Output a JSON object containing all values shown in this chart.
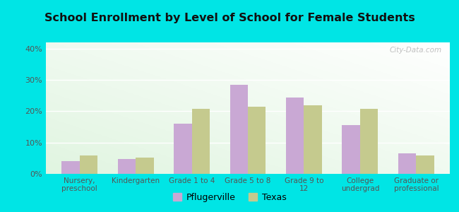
{
  "title": "School Enrollment by Level of School for Female Students",
  "categories": [
    "Nursery,\npreschool",
    "Kindergarten",
    "Grade 1 to 4",
    "Grade 5 to 8",
    "Grade 9 to\n12",
    "College\nundergrad",
    "Graduate or\nprofessional"
  ],
  "pflugerville": [
    4.0,
    4.8,
    16.0,
    28.5,
    24.5,
    15.5,
    6.5
  ],
  "texas": [
    5.8,
    5.3,
    20.8,
    21.5,
    21.8,
    20.8,
    5.8
  ],
  "pflugerville_color": "#c9a8d4",
  "texas_color": "#c5ca8e",
  "background_outer": "#00e5e5",
  "ylim": [
    0,
    42
  ],
  "yticks": [
    0,
    10,
    20,
    30,
    40
  ],
  "ytick_labels": [
    "0%",
    "10%",
    "20%",
    "30%",
    "40%"
  ],
  "bar_width": 0.32,
  "legend_pflugerville": "Pflugerville",
  "legend_texas": "Texas",
  "watermark": "City-Data.com",
  "title_fontsize": 11.5,
  "tick_fontsize": 7.5,
  "legend_fontsize": 9
}
